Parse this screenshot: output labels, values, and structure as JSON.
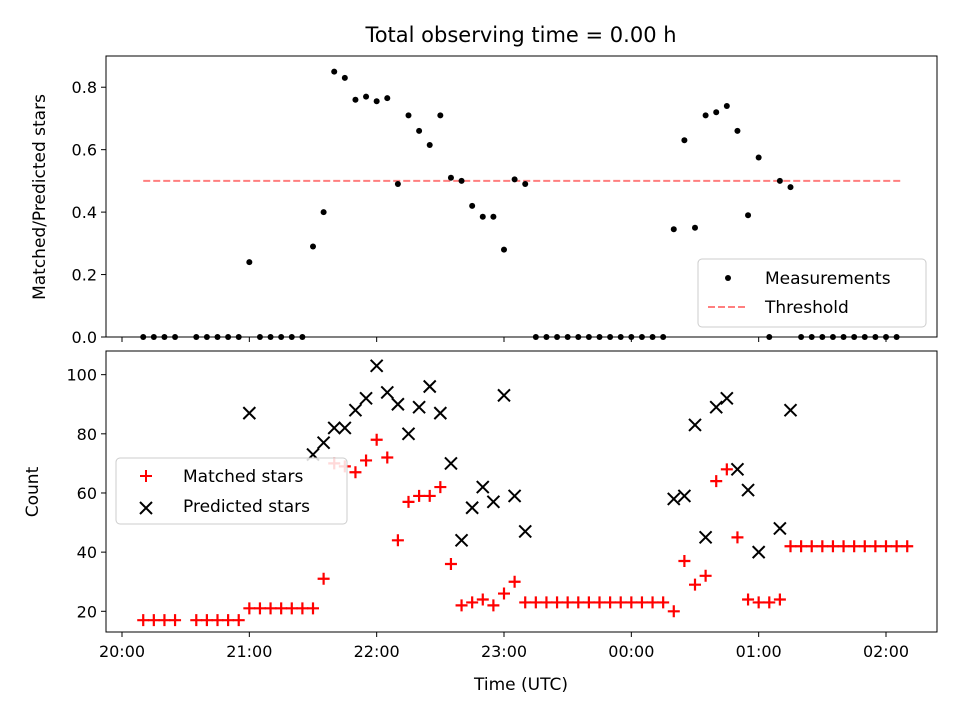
{
  "chart_data": [
    {
      "type": "scatter",
      "title": "Total observing time = 0.00 h",
      "ylabel": "Matched/Predicted stars",
      "xlabel": "",
      "ylim": [
        0,
        0.9
      ],
      "yticks": [
        0.0,
        0.2,
        0.4,
        0.6,
        0.8
      ],
      "ytick_labels": [
        "0.0",
        "0.2",
        "0.4",
        "0.6",
        "0.8"
      ],
      "legend_position": "lower-right",
      "threshold": {
        "name": "Threshold",
        "value": 0.5,
        "x_start": "20:10",
        "x_end": "02:08",
        "color": "#ff7f7f"
      },
      "series": [
        {
          "name": "Measurements",
          "color": "#000000",
          "points": [
            [
              "20:10",
              0.0
            ],
            [
              "20:15",
              0.0
            ],
            [
              "20:20",
              0.0
            ],
            [
              "20:25",
              0.0
            ],
            [
              "20:35",
              0.0
            ],
            [
              "20:40",
              0.0
            ],
            [
              "20:45",
              0.0
            ],
            [
              "20:50",
              0.0
            ],
            [
              "20:55",
              0.0
            ],
            [
              "21:00",
              0.24
            ],
            [
              "21:05",
              0.0
            ],
            [
              "21:10",
              0.0
            ],
            [
              "21:15",
              0.0
            ],
            [
              "21:20",
              0.0
            ],
            [
              "21:25",
              0.0
            ],
            [
              "21:30",
              0.29
            ],
            [
              "21:35",
              0.4
            ],
            [
              "21:40",
              0.85
            ],
            [
              "21:45",
              0.83
            ],
            [
              "21:50",
              0.76
            ],
            [
              "21:55",
              0.77
            ],
            [
              "22:00",
              0.755
            ],
            [
              "22:05",
              0.765
            ],
            [
              "22:10",
              0.49
            ],
            [
              "22:15",
              0.71
            ],
            [
              "22:20",
              0.66
            ],
            [
              "22:25",
              0.615
            ],
            [
              "22:30",
              0.71
            ],
            [
              "22:35",
              0.51
            ],
            [
              "22:40",
              0.5
            ],
            [
              "22:45",
              0.42
            ],
            [
              "22:50",
              0.385
            ],
            [
              "22:55",
              0.385
            ],
            [
              "23:00",
              0.28
            ],
            [
              "23:05",
              0.505
            ],
            [
              "23:10",
              0.49
            ],
            [
              "23:15",
              0.0
            ],
            [
              "23:20",
              0.0
            ],
            [
              "23:25",
              0.0
            ],
            [
              "23:30",
              0.0
            ],
            [
              "23:35",
              0.0
            ],
            [
              "23:40",
              0.0
            ],
            [
              "23:45",
              0.0
            ],
            [
              "23:50",
              0.0
            ],
            [
              "23:55",
              0.0
            ],
            [
              "00:00",
              0.0
            ],
            [
              "00:05",
              0.0
            ],
            [
              "00:10",
              0.0
            ],
            [
              "00:15",
              0.0
            ],
            [
              "00:20",
              0.345
            ],
            [
              "00:25",
              0.63
            ],
            [
              "00:30",
              0.35
            ],
            [
              "00:35",
              0.71
            ],
            [
              "00:40",
              0.72
            ],
            [
              "00:45",
              0.74
            ],
            [
              "00:50",
              0.66
            ],
            [
              "00:55",
              0.39
            ],
            [
              "01:00",
              0.575
            ],
            [
              "01:05",
              0.0
            ],
            [
              "01:10",
              0.5
            ],
            [
              "01:15",
              0.48
            ],
            [
              "01:20",
              0.0
            ],
            [
              "01:25",
              0.0
            ],
            [
              "01:30",
              0.0
            ],
            [
              "01:35",
              0.0
            ],
            [
              "01:40",
              0.0
            ],
            [
              "01:45",
              0.0
            ],
            [
              "01:50",
              0.0
            ],
            [
              "01:55",
              0.0
            ],
            [
              "02:00",
              0.0
            ],
            [
              "02:05",
              0.0
            ]
          ]
        }
      ]
    },
    {
      "type": "scatter",
      "title": "",
      "xlabel": "Time (UTC)",
      "ylabel": "Count",
      "ylim": [
        13,
        108
      ],
      "yticks": [
        20,
        40,
        60,
        80,
        100
      ],
      "ytick_labels": [
        "20",
        "40",
        "60",
        "80",
        "100"
      ],
      "xlim": [
        "20:05",
        "02:25"
      ],
      "xticks": [
        "20:00",
        "21:00",
        "22:00",
        "23:00",
        "00:00",
        "01:00",
        "02:00"
      ],
      "xtick_labels": [
        "20:00",
        "21:00",
        "22:00",
        "23:00",
        "00:00",
        "01:00",
        "02:00"
      ],
      "legend_position": "center-left",
      "series": [
        {
          "name": "Matched stars",
          "marker": "plus",
          "color": "#ff0000",
          "points": [
            [
              "20:10",
              17
            ],
            [
              "20:15",
              17
            ],
            [
              "20:20",
              17
            ],
            [
              "20:25",
              17
            ],
            [
              "20:35",
              17
            ],
            [
              "20:40",
              17
            ],
            [
              "20:45",
              17
            ],
            [
              "20:50",
              17
            ],
            [
              "20:55",
              17
            ],
            [
              "21:00",
              21
            ],
            [
              "21:05",
              21
            ],
            [
              "21:10",
              21
            ],
            [
              "21:15",
              21
            ],
            [
              "21:20",
              21
            ],
            [
              "21:25",
              21
            ],
            [
              "21:30",
              21
            ],
            [
              "21:35",
              31
            ],
            [
              "21:40",
              70
            ],
            [
              "21:45",
              69
            ],
            [
              "21:50",
              67
            ],
            [
              "21:55",
              71
            ],
            [
              "22:00",
              78
            ],
            [
              "22:05",
              72
            ],
            [
              "22:10",
              44
            ],
            [
              "22:15",
              57
            ],
            [
              "22:20",
              59
            ],
            [
              "22:25",
              59
            ],
            [
              "22:30",
              62
            ],
            [
              "22:35",
              36
            ],
            [
              "22:40",
              22
            ],
            [
              "22:45",
              23
            ],
            [
              "22:50",
              24
            ],
            [
              "22:55",
              22
            ],
            [
              "23:00",
              26
            ],
            [
              "23:05",
              30
            ],
            [
              "23:10",
              23
            ],
            [
              "23:15",
              23
            ],
            [
              "23:20",
              23
            ],
            [
              "23:25",
              23
            ],
            [
              "23:30",
              23
            ],
            [
              "23:35",
              23
            ],
            [
              "23:40",
              23
            ],
            [
              "23:45",
              23
            ],
            [
              "23:50",
              23
            ],
            [
              "23:55",
              23
            ],
            [
              "00:00",
              23
            ],
            [
              "00:05",
              23
            ],
            [
              "00:10",
              23
            ],
            [
              "00:15",
              23
            ],
            [
              "00:20",
              20
            ],
            [
              "00:25",
              37
            ],
            [
              "00:30",
              29
            ],
            [
              "00:35",
              32
            ],
            [
              "00:40",
              64
            ],
            [
              "00:45",
              68
            ],
            [
              "00:50",
              45
            ],
            [
              "00:55",
              24
            ],
            [
              "01:00",
              23
            ],
            [
              "01:05",
              23
            ],
            [
              "01:10",
              24
            ],
            [
              "01:15",
              42
            ],
            [
              "01:20",
              42
            ],
            [
              "01:25",
              42
            ],
            [
              "01:30",
              42
            ],
            [
              "01:35",
              42
            ],
            [
              "01:40",
              42
            ],
            [
              "01:45",
              42
            ],
            [
              "01:50",
              42
            ],
            [
              "01:55",
              42
            ],
            [
              "02:00",
              42
            ],
            [
              "02:05",
              42
            ],
            [
              "02:10",
              42
            ]
          ]
        },
        {
          "name": "Predicted stars",
          "marker": "x",
          "color": "#000000",
          "points": [
            [
              "21:00",
              87
            ],
            [
              "21:30",
              73
            ],
            [
              "21:35",
              77
            ],
            [
              "21:40",
              82
            ],
            [
              "21:45",
              82
            ],
            [
              "21:50",
              88
            ],
            [
              "21:55",
              92
            ],
            [
              "22:00",
              103
            ],
            [
              "22:05",
              94
            ],
            [
              "22:10",
              90
            ],
            [
              "22:15",
              80
            ],
            [
              "22:20",
              89
            ],
            [
              "22:25",
              96
            ],
            [
              "22:30",
              87
            ],
            [
              "22:35",
              70
            ],
            [
              "22:40",
              44
            ],
            [
              "22:45",
              55
            ],
            [
              "22:50",
              62
            ],
            [
              "22:55",
              57
            ],
            [
              "23:00",
              93
            ],
            [
              "23:05",
              59
            ],
            [
              "23:10",
              47
            ],
            [
              "00:20",
              58
            ],
            [
              "00:25",
              59
            ],
            [
              "00:30",
              83
            ],
            [
              "00:35",
              45
            ],
            [
              "00:40",
              89
            ],
            [
              "00:45",
              92
            ],
            [
              "00:50",
              68
            ],
            [
              "00:55",
              61
            ],
            [
              "01:00",
              40
            ],
            [
              "01:10",
              48
            ],
            [
              "01:15",
              88
            ]
          ]
        }
      ]
    }
  ]
}
